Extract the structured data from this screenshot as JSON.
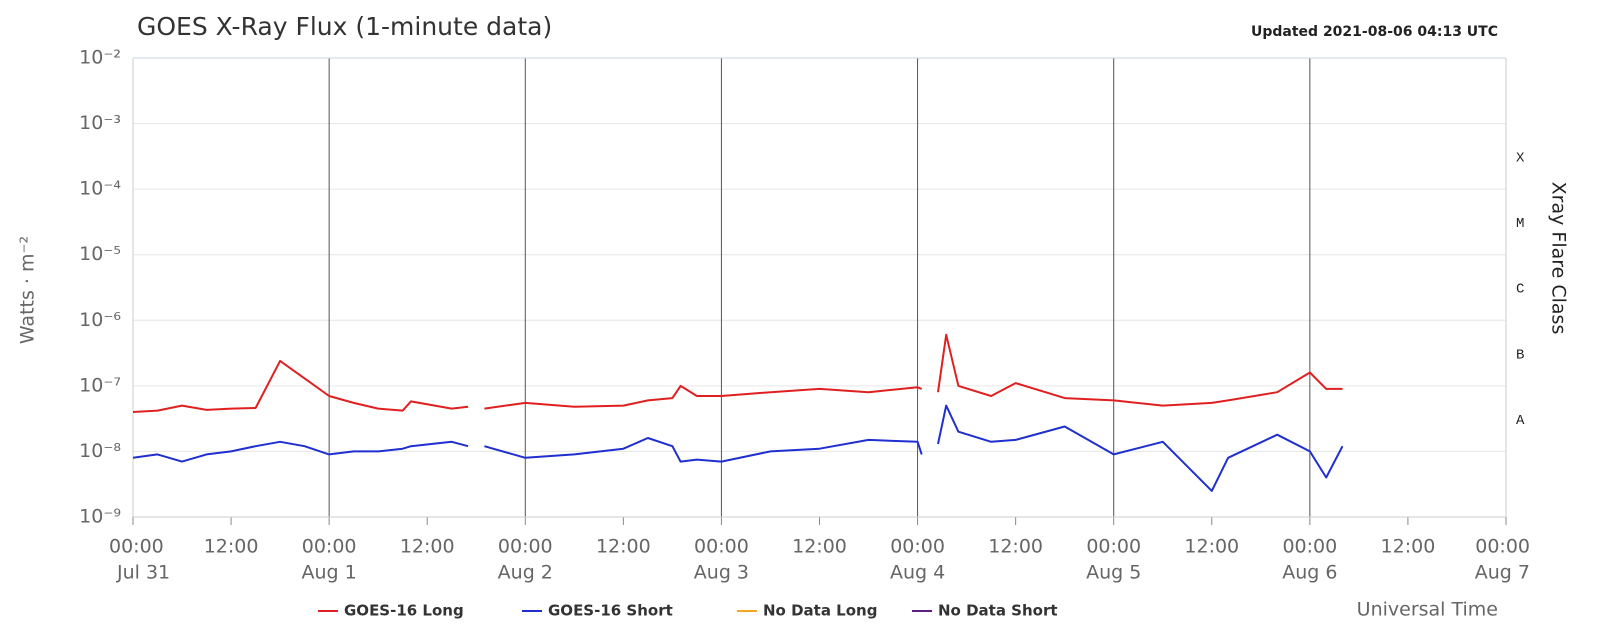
{
  "chart_data": {
    "type": "line",
    "title": "GOES X-Ray Flux (1-minute data)",
    "updated": "Updated 2021-08-06 04:13 UTC",
    "y_label": "Watts · m⁻²",
    "x_label": "Universal Time",
    "y2_label": "Xray Flare Class",
    "log_y": true,
    "grid": true,
    "x": [
      "Jul 31 00:00",
      "Jul 31 03:00",
      "Jul 31 06:00",
      "Jul 31 09:00",
      "Jul 31 12:00",
      "Jul 31 15:00",
      "Jul 31 18:00",
      "Jul 31 21:00",
      "Aug 1 00:00",
      "Aug 1 03:00",
      "Aug 1 06:00",
      "Aug 1 09:00",
      "Aug 1 10:00",
      "Aug 1 15:00",
      "Aug 1 17:00",
      "Aug 1 18:00",
      "Aug 1 19:00",
      "Aug 2 00:00",
      "Aug 2 06:00",
      "Aug 2 12:00",
      "Aug 2 15:00",
      "Aug 2 18:00",
      "Aug 2 19:00",
      "Aug 2 21:00",
      "Aug 3 00:00",
      "Aug 3 06:00",
      "Aug 3 12:00",
      "Aug 3 18:00",
      "Aug 4 00:00",
      "Aug 4 00:30",
      "Aug 4 01:30",
      "Aug 4 02:30",
      "Aug 4 03:30",
      "Aug 4 05:00",
      "Aug 4 09:00",
      "Aug 4 12:00",
      "Aug 4 18:00",
      "Aug 5 00:00",
      "Aug 5 06:00",
      "Aug 5 12:00",
      "Aug 5 14:00",
      "Aug 5 20:00",
      "Aug 6 00:00",
      "Aug 6 02:00",
      "Aug 6 04:00"
    ],
    "series": [
      {
        "name": "GOES-16 Long",
        "color": "#e02020",
        "values": [
          4e-08,
          4.2e-08,
          5e-08,
          4.3e-08,
          4.5e-08,
          4.6e-08,
          2.4e-07,
          1.3e-07,
          7e-08,
          5.5e-08,
          4.5e-08,
          4.2e-08,
          5.8e-08,
          4.5e-08,
          4.8e-08,
          null,
          4.5e-08,
          5.5e-08,
          4.8e-08,
          5e-08,
          6e-08,
          6.5e-08,
          1e-07,
          7e-08,
          7e-08,
          8e-08,
          9e-08,
          8e-08,
          9.5e-08,
          9e-08,
          null,
          8e-08,
          6e-07,
          1e-07,
          7e-08,
          1.1e-07,
          6.5e-08,
          6e-08,
          5e-08,
          5.5e-08,
          6e-08,
          8e-08,
          1.6e-07,
          9e-08,
          9e-08
        ]
      },
      {
        "name": "GOES-16 Short",
        "color": "#1f2fd0",
        "values": [
          8e-09,
          9e-09,
          7e-09,
          9e-09,
          1e-08,
          1.2e-08,
          1.4e-08,
          1.2e-08,
          9e-09,
          1e-08,
          1e-08,
          1.1e-08,
          1.2e-08,
          1.4e-08,
          1.2e-08,
          null,
          1.2e-08,
          8e-09,
          9e-09,
          1.1e-08,
          1.6e-08,
          1.2e-08,
          7e-09,
          7.5e-09,
          7e-09,
          1e-08,
          1.1e-08,
          1.5e-08,
          1.4e-08,
          9e-09,
          null,
          1.3e-08,
          5e-08,
          2e-08,
          1.4e-08,
          1.5e-08,
          2.4e-08,
          9e-09,
          1.4e-08,
          2.5e-09,
          8e-09,
          1.8e-08,
          1e-08,
          4e-09,
          1.2e-08
        ]
      },
      {
        "name": "No Data Long",
        "color": "#f5a623",
        "values": [
          null,
          null,
          null,
          null,
          null,
          null,
          null,
          null,
          null,
          null,
          null,
          null,
          null,
          null,
          null,
          null,
          null,
          null,
          null,
          null,
          null,
          null,
          null,
          null,
          null,
          null,
          null,
          null,
          null,
          null,
          null,
          null,
          null,
          null,
          null,
          null,
          null,
          null,
          null,
          null,
          null,
          null,
          null,
          null,
          null
        ]
      },
      {
        "name": "No Data Short",
        "color": "#5b1f8a",
        "values": [
          null,
          null,
          null,
          null,
          null,
          null,
          null,
          null,
          null,
          null,
          null,
          null,
          null,
          null,
          null,
          null,
          null,
          null,
          null,
          null,
          null,
          null,
          null,
          null,
          null,
          null,
          null,
          null,
          null,
          null,
          null,
          null,
          null,
          null,
          null,
          null,
          null,
          null,
          null,
          null,
          null,
          null,
          null,
          null,
          null
        ]
      }
    ],
    "xlim": [
      "Jul 31 00:00",
      "Aug 7 00:00"
    ],
    "xticks": [
      {
        "value": "Jul 31 00:00",
        "label": "00:00",
        "date": "Jul 31"
      },
      {
        "value": "Jul 31 12:00",
        "label": "12:00"
      },
      {
        "value": "Aug 1 00:00",
        "label": "00:00",
        "date": "Aug 1"
      },
      {
        "value": "Aug 1 12:00",
        "label": "12:00"
      },
      {
        "value": "Aug 2 00:00",
        "label": "00:00",
        "date": "Aug 2"
      },
      {
        "value": "Aug 2 12:00",
        "label": "12:00"
      },
      {
        "value": "Aug 3 00:00",
        "label": "00:00",
        "date": "Aug 3"
      },
      {
        "value": "Aug 3 12:00",
        "label": "12:00"
      },
      {
        "value": "Aug 4 00:00",
        "label": "00:00",
        "date": "Aug 4"
      },
      {
        "value": "Aug 4 12:00",
        "label": "12:00"
      },
      {
        "value": "Aug 5 00:00",
        "label": "00:00",
        "date": "Aug 5"
      },
      {
        "value": "Aug 5 12:00",
        "label": "12:00"
      },
      {
        "value": "Aug 6 00:00",
        "label": "00:00",
        "date": "Aug 6"
      },
      {
        "value": "Aug 6 12:00",
        "label": "12:00"
      },
      {
        "value": "Aug 7 00:00",
        "label": "00:00",
        "date": "Aug 7"
      }
    ],
    "ylim": [
      1e-09,
      0.01
    ],
    "yticks": [
      {
        "value": 1e-09,
        "label": "10⁻⁹"
      },
      {
        "value": 1e-08,
        "label": "10⁻⁸"
      },
      {
        "value": 1e-07,
        "label": "10⁻⁷"
      },
      {
        "value": 1e-06,
        "label": "10⁻⁶"
      },
      {
        "value": 1e-05,
        "label": "10⁻⁵"
      },
      {
        "value": 0.0001,
        "label": "10⁻⁴"
      },
      {
        "value": 0.001,
        "label": "10⁻³"
      },
      {
        "value": 0.01,
        "label": "10⁻²"
      }
    ],
    "y2ticks": [
      {
        "value": 3e-08,
        "label": "A"
      },
      {
        "value": 3e-07,
        "label": "B"
      },
      {
        "value": 3e-06,
        "label": "C"
      },
      {
        "value": 3e-05,
        "label": "M"
      },
      {
        "value": 0.0003,
        "label": "X"
      }
    ]
  }
}
